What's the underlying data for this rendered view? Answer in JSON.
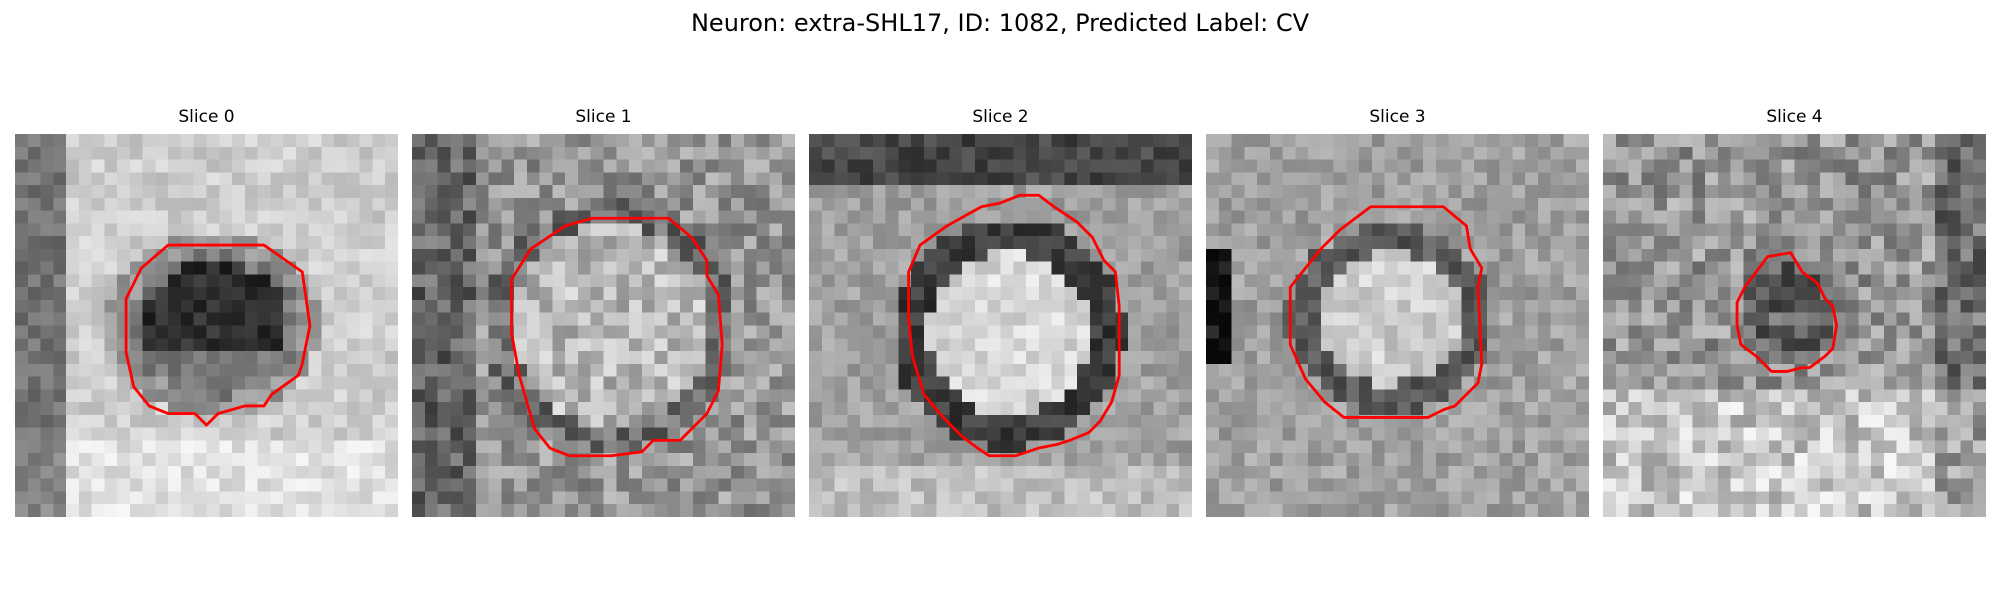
{
  "figure": {
    "title": "Neuron: extra-SHL17, ID: 1082, Predicted Label: CV"
  },
  "panels": [
    {
      "title": "Slice 0",
      "outline_color": "#ff0000"
    },
    {
      "title": "Slice 1",
      "outline_color": "#ff0000"
    },
    {
      "title": "Slice 2",
      "outline_color": "#ff0000"
    },
    {
      "title": "Slice 3",
      "outline_color": "#ff0000"
    },
    {
      "title": "Slice 4",
      "outline_color": "#ff0000"
    }
  ]
}
